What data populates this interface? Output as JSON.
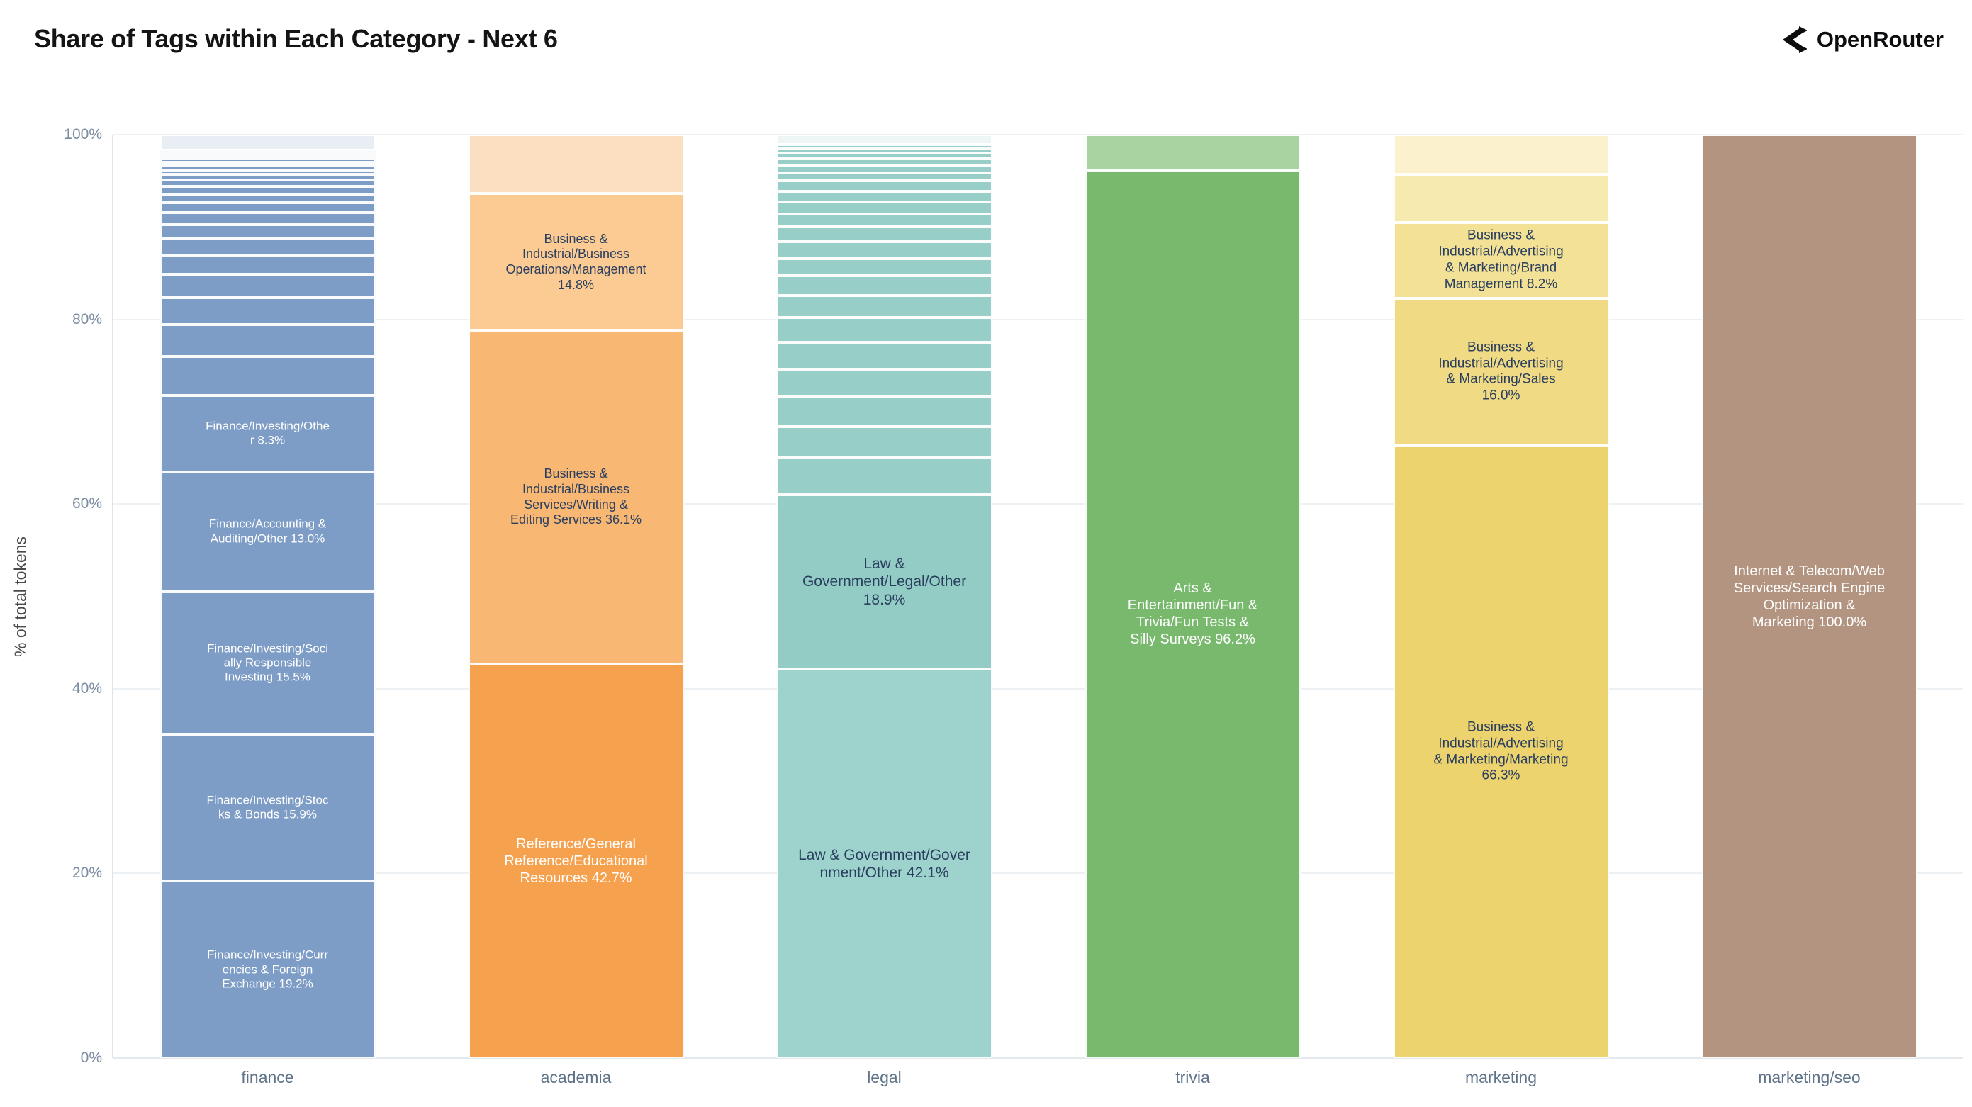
{
  "header": {
    "title": "Share of Tags within Each Category - Next 6",
    "brand": "OpenRouter"
  },
  "chart_data": {
    "type": "bar",
    "stacked": true,
    "title": "Share of Tags within Each Category - Next 6",
    "ylabel": "% of total tokens",
    "ylim": [
      0,
      100
    ],
    "yticks": [
      "0%",
      "20%",
      "40%",
      "60%",
      "80%",
      "100%"
    ],
    "grid": true,
    "legend": false,
    "categories": [
      "finance",
      "academia",
      "legal",
      "trivia",
      "marketing",
      "marketing/seo"
    ],
    "bars": [
      {
        "category": "finance",
        "segments": [
          {
            "value": 19.2,
            "color": "#7e9dc6",
            "label": "Finance/Investing/Curr\nencies & Foreign\nExchange 19.2%",
            "label_color": "#ffffff",
            "label_size": 17
          },
          {
            "value": 15.9,
            "color": "#7e9dc6",
            "label": "Finance/Investing/Stoc\nks & Bonds 15.9%",
            "label_color": "#ffffff",
            "label_size": 17
          },
          {
            "value": 15.5,
            "color": "#7e9dc6",
            "label": "Finance/Investing/Soci\nally Responsible\nInvesting 15.5%",
            "label_color": "#ffffff",
            "label_size": 17
          },
          {
            "value": 13.0,
            "color": "#7e9dc6",
            "label": "Finance/Accounting &\nAuditing/Other 13.0%",
            "label_color": "#ffffff",
            "label_size": 17
          },
          {
            "value": 8.3,
            "color": "#7e9dc6",
            "label": "Finance/Investing/Othe\nr 8.3%",
            "label_color": "#ffffff",
            "label_size": 17
          },
          {
            "value": 4.2,
            "color": "#7e9dc6"
          },
          {
            "value": 3.5,
            "color": "#7e9dc6"
          },
          {
            "value": 2.9,
            "color": "#7e9dc6"
          },
          {
            "value": 2.5,
            "color": "#7e9dc6"
          },
          {
            "value": 2.1,
            "color": "#7e9dc6"
          },
          {
            "value": 1.8,
            "color": "#7e9dc6"
          },
          {
            "value": 1.5,
            "color": "#7e9dc6"
          },
          {
            "value": 1.3,
            "color": "#7e9dc6"
          },
          {
            "value": 1.1,
            "color": "#7e9dc6"
          },
          {
            "value": 0.95,
            "color": "#7e9dc6"
          },
          {
            "value": 0.8,
            "color": "#7e9dc6"
          },
          {
            "value": 0.7,
            "color": "#7e9dc6"
          },
          {
            "value": 0.6,
            "color": "#7e9dc6"
          },
          {
            "value": 0.5,
            "color": "#7e9dc6"
          },
          {
            "value": 0.45,
            "color": "#7e9dc6"
          },
          {
            "value": 0.4,
            "color": "#7e9dc6"
          },
          {
            "value": 0.35,
            "color": "#7e9dc6"
          },
          {
            "value": 0.3,
            "color": "#7e9dc6"
          },
          {
            "value": 0.25,
            "color": "#7e9dc6"
          },
          {
            "value": 0.2,
            "color": "#7e9dc6"
          },
          {
            "value": 1.7,
            "color": "#e9eef5"
          }
        ]
      },
      {
        "category": "academia",
        "segments": [
          {
            "value": 42.7,
            "color": "#f6a14e",
            "label": "Reference/General\nReference/Educational\nResources 42.7%",
            "label_color": "#ffffff",
            "label_size": 20
          },
          {
            "value": 36.1,
            "color": "#f8b773",
            "label": "Business &\nIndustrial/Business\nServices/Writing &\nEditing Services 36.1%",
            "label_color": "#2a3f5f",
            "label_size": 18
          },
          {
            "value": 14.8,
            "color": "#fbcb93",
            "label": "Business &\nIndustrial/Business\nOperations/Management\n14.8%",
            "label_color": "#2a3f5f",
            "label_size": 18
          },
          {
            "value": 6.4,
            "color": "#fcdfc0"
          }
        ]
      },
      {
        "category": "legal",
        "segments": [
          {
            "value": 42.1,
            "color": "#9dd3cc",
            "label": "Law & Government/Gover\nnment/Other 42.1%",
            "label_color": "#2a3f5f",
            "label_size": 21
          },
          {
            "value": 18.9,
            "color": "#93ccc5",
            "label": "Law &\nGovernment/Legal/Other\n18.9%",
            "label_color": "#2a3f5f",
            "label_size": 21
          },
          {
            "value": 4.0,
            "color": "#97cfc8"
          },
          {
            "value": 3.4,
            "color": "#97cfc8"
          },
          {
            "value": 3.2,
            "color": "#97cfc8"
          },
          {
            "value": 3.0,
            "color": "#97cfc8"
          },
          {
            "value": 2.9,
            "color": "#97cfc8"
          },
          {
            "value": 2.7,
            "color": "#97cfc8"
          },
          {
            "value": 2.4,
            "color": "#97cfc8"
          },
          {
            "value": 2.1,
            "color": "#97cfc8"
          },
          {
            "value": 1.9,
            "color": "#97cfc8"
          },
          {
            "value": 1.8,
            "color": "#97cfc8"
          },
          {
            "value": 1.6,
            "color": "#97cfc8"
          },
          {
            "value": 1.4,
            "color": "#97cfc8"
          },
          {
            "value": 1.3,
            "color": "#97cfc8"
          },
          {
            "value": 1.2,
            "color": "#97cfc8"
          },
          {
            "value": 1.1,
            "color": "#97cfc8"
          },
          {
            "value": 0.9,
            "color": "#97cfc8"
          },
          {
            "value": 0.8,
            "color": "#97cfc8"
          },
          {
            "value": 0.7,
            "color": "#97cfc8"
          },
          {
            "value": 0.6,
            "color": "#97cfc8"
          },
          {
            "value": 0.5,
            "color": "#97cfc8"
          },
          {
            "value": 0.4,
            "color": "#97cfc8"
          },
          {
            "value": 1.1,
            "color": "#eef6f5"
          }
        ]
      },
      {
        "category": "trivia",
        "segments": [
          {
            "value": 96.2,
            "color": "#78b96e",
            "label": "Arts &\nEntertainment/Fun &\nTrivia/Fun Tests &\nSilly Surveys 96.2%",
            "label_color": "#ffffff",
            "label_size": 20
          },
          {
            "value": 3.8,
            "color": "#a9d3a1"
          }
        ]
      },
      {
        "category": "marketing",
        "segments": [
          {
            "value": 66.3,
            "color": "#edd36e",
            "label": "Business &\nIndustrial/Advertising\n& Marketing/Marketing\n66.3%",
            "label_color": "#2a3f5f",
            "label_size": 19
          },
          {
            "value": 16.0,
            "color": "#f0da84",
            "label": "Business &\nIndustrial/Advertising\n& Marketing/Sales\n16.0%",
            "label_color": "#2a3f5f",
            "label_size": 19
          },
          {
            "value": 8.2,
            "color": "#f3e196",
            "label": "Business &\nIndustrial/Advertising\n& Marketing/Brand\nManagement 8.2%",
            "label_color": "#2a3f5f",
            "label_size": 19
          },
          {
            "value": 5.2,
            "color": "#f7eaae"
          },
          {
            "value": 4.3,
            "color": "#fbf2cd"
          }
        ]
      },
      {
        "category": "marketing/seo",
        "segments": [
          {
            "value": 100.0,
            "color": "#b29480",
            "label": "Internet & Telecom/Web\nServices/Search Engine\nOptimization &\nMarketing 100.0%",
            "label_color": "#ffffff",
            "label_size": 20
          }
        ]
      }
    ]
  }
}
